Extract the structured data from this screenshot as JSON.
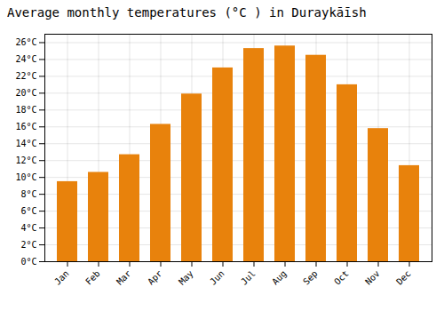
{
  "chart_data": {
    "type": "bar",
    "title": "Average monthly temperatures (°C ) in Duraykāīsh",
    "categories": [
      "Jan",
      "Feb",
      "Mar",
      "Apr",
      "May",
      "Jun",
      "Jul",
      "Aug",
      "Sep",
      "Oct",
      "Nov",
      "Dec"
    ],
    "values": [
      9.5,
      10.6,
      12.7,
      16.3,
      19.9,
      23.0,
      25.3,
      25.6,
      24.5,
      21.0,
      15.8,
      11.4
    ],
    "color": "#E8820C",
    "ylim": [
      0,
      27
    ],
    "yticks": [
      {
        "value": 0,
        "label": "0°C"
      },
      {
        "value": 2,
        "label": "2°C"
      },
      {
        "value": 4,
        "label": "4°C"
      },
      {
        "value": 6,
        "label": "6°C"
      },
      {
        "value": 8,
        "label": "8°C"
      },
      {
        "value": 10,
        "label": "10°C"
      },
      {
        "value": 12,
        "label": "12°C"
      },
      {
        "value": 14,
        "label": "14°C"
      },
      {
        "value": 16,
        "label": "16°C"
      },
      {
        "value": 18,
        "label": "18°C"
      },
      {
        "value": 20,
        "label": "20°C"
      },
      {
        "value": 22,
        "label": "22°C"
      },
      {
        "value": 24,
        "label": "24°C"
      },
      {
        "value": 26,
        "label": "26°C"
      }
    ],
    "grid": true
  }
}
